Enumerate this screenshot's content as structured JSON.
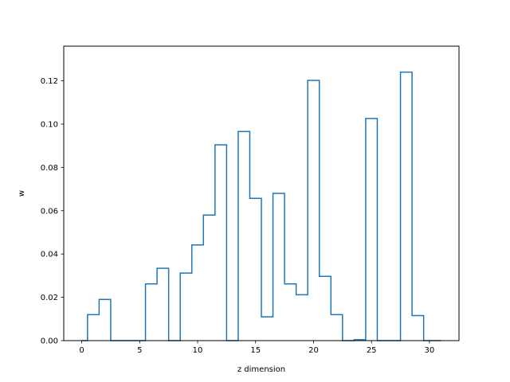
{
  "chart_data": {
    "type": "histogram-step",
    "title": "",
    "xlabel": "z dimension",
    "ylabel": "w",
    "xlim": [
      -1.55,
      32.55
    ],
    "ylim": [
      0,
      0.136
    ],
    "xticks": [
      0,
      5,
      10,
      15,
      20,
      25,
      30
    ],
    "xtick_labels": [
      "0",
      "5",
      "10",
      "15",
      "20",
      "25",
      "30"
    ],
    "yticks": [
      0.0,
      0.02,
      0.04,
      0.06,
      0.08,
      0.1,
      0.12
    ],
    "ytick_labels": [
      "0.00",
      "0.02",
      "0.04",
      "0.06",
      "0.08",
      "0.10",
      "0.12"
    ],
    "grid": false,
    "line_color": "#1f77b4",
    "bin_edges": [
      0,
      0.5,
      1.5,
      2.5,
      3.5,
      4.5,
      5.5,
      6.5,
      7.5,
      8.5,
      9.5,
      10.5,
      11.5,
      12.5,
      13.5,
      14.5,
      15.5,
      16.5,
      17.5,
      18.5,
      19.5,
      20.5,
      21.5,
      22.5,
      23.5,
      24.5,
      25.5,
      26.5,
      27.5,
      28.5,
      29.5,
      31
    ],
    "values": [
      0.0,
      0.012,
      0.019,
      0.0,
      0.0,
      0.0,
      0.0262,
      0.0334,
      0.0,
      0.0312,
      0.0442,
      0.058,
      0.0904,
      0.0,
      0.0966,
      0.0657,
      0.011,
      0.068,
      0.0262,
      0.0212,
      0.1202,
      0.0297,
      0.012,
      0.0,
      0.0004,
      0.1026,
      0.0,
      0.0,
      0.124,
      0.0116,
      0.0
    ]
  }
}
